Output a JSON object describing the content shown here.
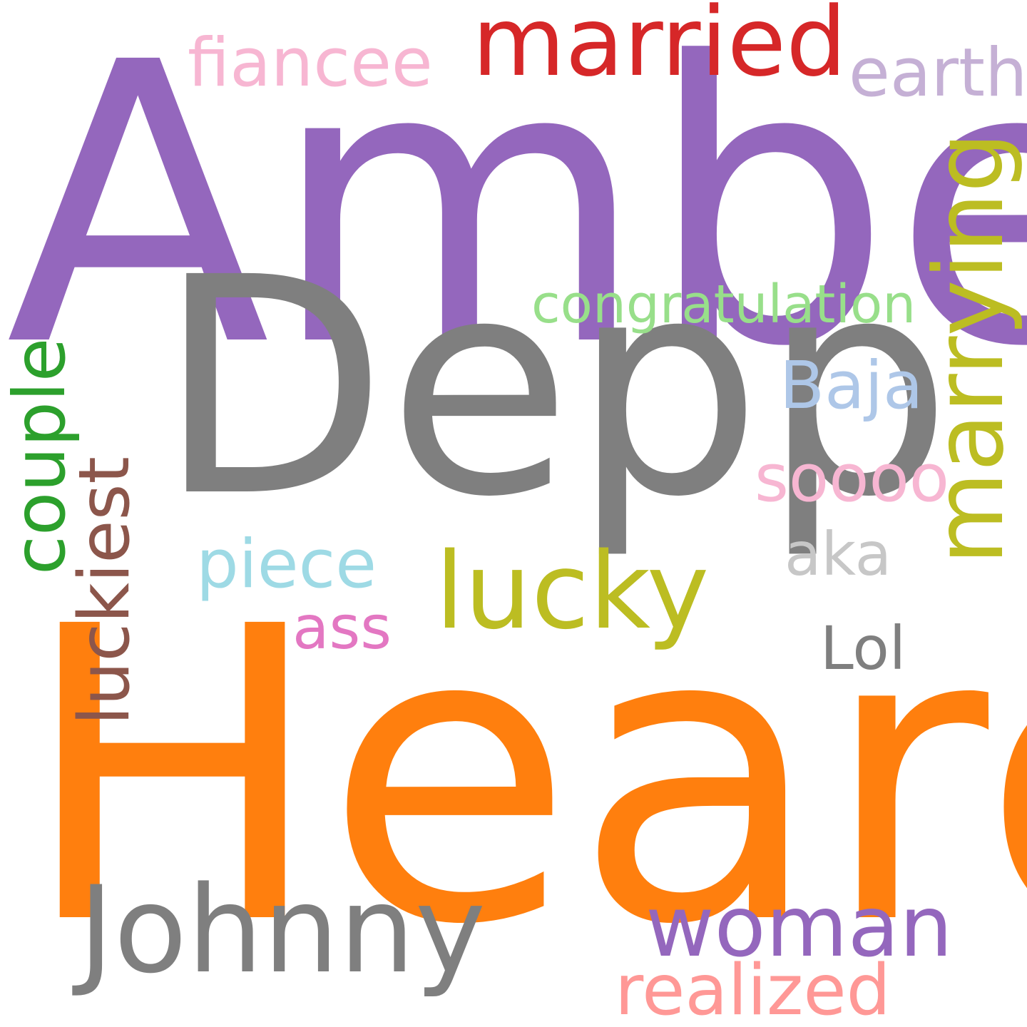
{
  "background_color": "#ffffff",
  "words": {
    "amber": {
      "text": "Amber",
      "color": "#9467bd",
      "orientation": "horizontal"
    },
    "heard": {
      "text": "Heard",
      "color": "#ff7f0e",
      "orientation": "horizontal"
    },
    "depp": {
      "text": "Depp",
      "color": "#7f7f7f",
      "orientation": "horizontal"
    },
    "johnny": {
      "text": "Johnny",
      "color": "#7f7f7f",
      "orientation": "horizontal"
    },
    "married": {
      "text": "married",
      "color": "#d62728",
      "orientation": "horizontal"
    },
    "lucky": {
      "text": "lucky",
      "color": "#bcbd22",
      "orientation": "horizontal"
    },
    "marrying": {
      "text": "marrying",
      "color": "#bcbd22",
      "orientation": "vertical"
    },
    "woman": {
      "text": "woman",
      "color": "#9467bd",
      "orientation": "horizontal"
    },
    "fiancee": {
      "text": "fiancee",
      "color": "#f7b6d2",
      "orientation": "horizontal"
    },
    "earth": {
      "text": "earth",
      "color": "#c5b0d5",
      "orientation": "horizontal"
    },
    "congratulation": {
      "text": "congratulation",
      "color": "#98df8a",
      "orientation": "horizontal"
    },
    "baja": {
      "text": "Baja",
      "color": "#aec7e8",
      "orientation": "horizontal"
    },
    "soooo": {
      "text": "soooo",
      "color": "#f7b6d2",
      "orientation": "horizontal"
    },
    "aka": {
      "text": "aka",
      "color": "#c7c7c7",
      "orientation": "horizontal"
    },
    "piece": {
      "text": "piece",
      "color": "#9edae5",
      "orientation": "horizontal"
    },
    "ass": {
      "text": "ass",
      "color": "#e377c2",
      "orientation": "horizontal"
    },
    "lol": {
      "text": "Lol",
      "color": "#7f7f7f",
      "orientation": "horizontal"
    },
    "couple": {
      "text": "couple",
      "color": "#2ca02c",
      "orientation": "vertical"
    },
    "luckiest": {
      "text": "luckiest",
      "color": "#8c564b",
      "orientation": "vertical"
    },
    "realized": {
      "text": "realized",
      "color": "#ff9896",
      "orientation": "horizontal"
    }
  }
}
